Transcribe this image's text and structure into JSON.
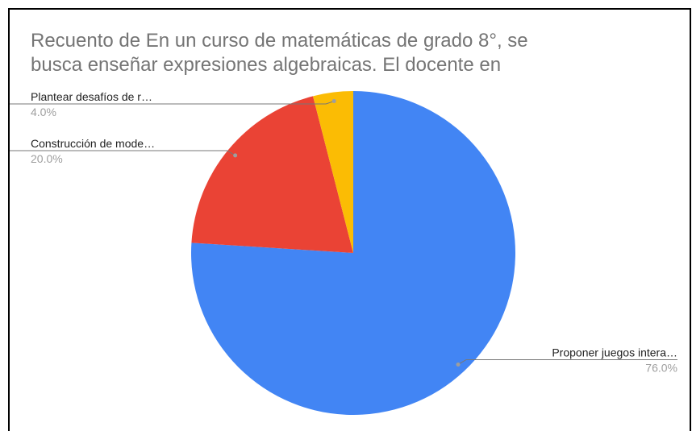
{
  "chart_data": {
    "type": "pie",
    "title_lines": [
      "Recuento de En un curso de matemáticas de grado 8°, se",
      "busca enseñar expresiones algebraicas. El docente en"
    ],
    "categories": [
      "Proponer juegos intera…",
      "Construcción de mode…",
      "Plantear desafíos de r…"
    ],
    "values": [
      76,
      20,
      4
    ],
    "value_labels": [
      "76.0%",
      "20.0%",
      "4.0%"
    ],
    "colors": [
      "#4285f4",
      "#ea4335",
      "#fbbc04"
    ]
  }
}
